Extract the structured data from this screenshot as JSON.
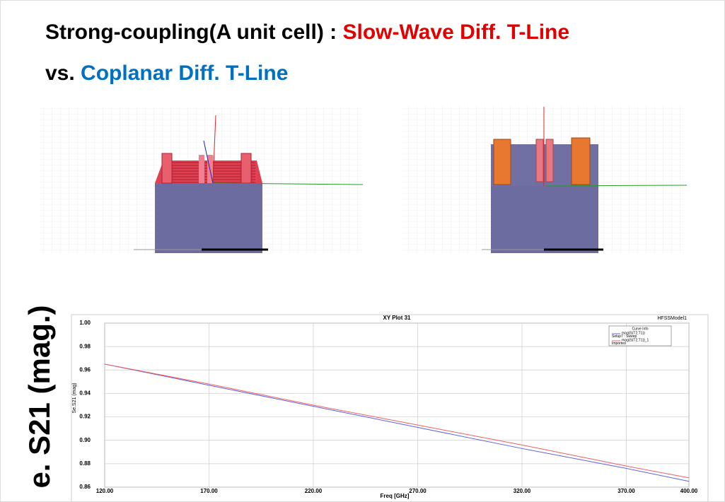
{
  "header": {
    "line1": {
      "lead": "Strong-coupling(A unit cell) : ",
      "highlight": "Slow-Wave Diff. T-Line"
    },
    "line2": {
      "lead": "vs. ",
      "highlight": "Coplanar Diff. T-Line"
    }
  },
  "side_label": "e. S21 (mag.)",
  "chart_data": {
    "type": "line",
    "title": "XY Plot 31",
    "model": "HFSSModel1",
    "xlabel": "Freq [GHz]",
    "ylabel": "Se.S21 (mag)",
    "x": [
      120,
      170,
      220,
      270,
      320,
      370,
      400
    ],
    "series": [
      {
        "name": "mag(S(T2,T1))",
        "source": "Setup7 : Sweep",
        "color": "#6060e8",
        "values": [
          0.965,
          0.947,
          0.929,
          0.911,
          0.893,
          0.876,
          0.865
        ]
      },
      {
        "name": "mag(S(T2,T1))_1",
        "source": "Imported",
        "color": "#f06060",
        "values": [
          0.965,
          0.948,
          0.93,
          0.913,
          0.896,
          0.878,
          0.868
        ]
      }
    ],
    "legend_title": "Curve Info",
    "xlim": [
      120,
      400
    ],
    "xticks": [
      {
        "value": 120,
        "label": "120.00"
      },
      {
        "value": 170,
        "label": "170.00"
      },
      {
        "value": 220,
        "label": "220.00"
      },
      {
        "value": 270,
        "label": "270.00"
      },
      {
        "value": 320,
        "label": "320.00"
      },
      {
        "value": 370,
        "label": "370.00"
      },
      {
        "value": 400,
        "label": "400.00"
      }
    ],
    "ylim": [
      0.86,
      1.0
    ],
    "yticks": [
      {
        "value": 0.86,
        "label": "0.86"
      },
      {
        "value": 0.88,
        "label": "0.88"
      },
      {
        "value": 0.9,
        "label": "0.90"
      },
      {
        "value": 0.92,
        "label": "0.92"
      },
      {
        "value": 0.94,
        "label": "0.94"
      },
      {
        "value": 0.96,
        "label": "0.96"
      },
      {
        "value": 0.98,
        "label": "0.98"
      },
      {
        "value": 1.0,
        "label": "1.00"
      }
    ],
    "grid": true
  }
}
